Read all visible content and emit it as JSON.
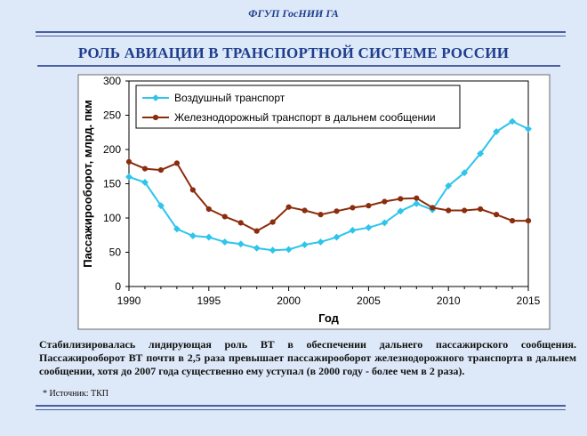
{
  "header": {
    "org": "ФГУП ГосНИИ ГА",
    "title": "РОЛЬ АВИАЦИИ В ТРАНСПОРТНОЙ СИСТЕМЕ РОССИИ"
  },
  "chart_data": {
    "type": "line",
    "xlabel": "Год",
    "ylabel": "Пассажирооборот, млрд. пкм",
    "xlim": [
      1990,
      2015
    ],
    "ylim": [
      0,
      300
    ],
    "x_ticks": [
      "1990",
      "1995",
      "2000",
      "2005",
      "2010",
      "2015"
    ],
    "y_ticks": [
      "0",
      "50",
      "100",
      "150",
      "200",
      "250",
      "300"
    ],
    "grid": false,
    "legend_position": "top-left",
    "series": [
      {
        "name": "Воздушный транспорт",
        "color": "#2ec4ec",
        "marker": "diamond",
        "x": [
          1990,
          1991,
          1992,
          1993,
          1994,
          1995,
          1996,
          1997,
          1998,
          1999,
          2000,
          2001,
          2002,
          2003,
          2004,
          2005,
          2006,
          2007,
          2008,
          2009,
          2010,
          2011,
          2012,
          2013,
          2014,
          2015
        ],
        "values": [
          160,
          152,
          118,
          84,
          74,
          72,
          65,
          62,
          56,
          53,
          54,
          61,
          65,
          72,
          82,
          86,
          93,
          110,
          121,
          112,
          147,
          166,
          194,
          226,
          241,
          230
        ]
      },
      {
        "name": "Железнодорожный транспорт в дальнем сообщении",
        "color": "#8b2c0c",
        "marker": "circle",
        "x": [
          1990,
          1991,
          1992,
          1993,
          1994,
          1995,
          1996,
          1997,
          1998,
          1999,
          2000,
          2001,
          2002,
          2003,
          2004,
          2005,
          2006,
          2007,
          2008,
          2009,
          2010,
          2011,
          2012,
          2013,
          2014,
          2015
        ],
        "values": [
          182,
          172,
          170,
          180,
          141,
          113,
          102,
          93,
          81,
          94,
          116,
          111,
          105,
          110,
          115,
          118,
          124,
          128,
          129,
          115,
          111,
          111,
          113,
          105,
          96,
          96
        ]
      }
    ]
  },
  "caption": "Стабилизировалась лидирующая роль ВТ в обеспечении дальнего пассажирского сообщения. Пассажирооборот ВТ почти в 2,5 раза превышает пассажирооборот железнодорожного транспорта в дальнем сообщении, хотя до 2007 года существенно ему уступал (в 2000 году - более чем в 2 раза).",
  "source": "* Источник: ТКП"
}
